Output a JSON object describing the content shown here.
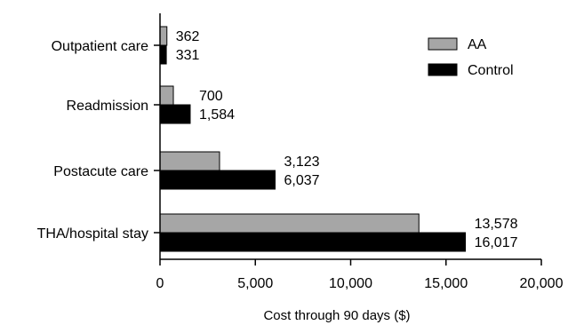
{
  "chart_data": {
    "type": "bar",
    "orientation": "horizontal",
    "categories": [
      "Outpatient care",
      "Readmission",
      "Postacute care",
      "THA/hospital stay"
    ],
    "series": [
      {
        "name": "AA",
        "values": [
          362,
          700,
          3123,
          13578
        ],
        "value_labels": [
          "362",
          "700",
          "3,123",
          "13,578"
        ],
        "color": "#a6a6a6"
      },
      {
        "name": "Control",
        "values": [
          331,
          1584,
          6037,
          16017
        ],
        "value_labels": [
          "331",
          "1,584",
          "6,037",
          "16,017"
        ],
        "color": "#000000"
      }
    ],
    "xlabel": "Cost through 90 days ($)",
    "xlim": [
      0,
      20000
    ],
    "xticks": [
      0,
      5000,
      10000,
      15000,
      20000
    ],
    "xtick_labels": [
      "0",
      "5,000",
      "10,000",
      "15,000",
      "20,000"
    ],
    "grid": false,
    "legend_position": "top-right"
  }
}
